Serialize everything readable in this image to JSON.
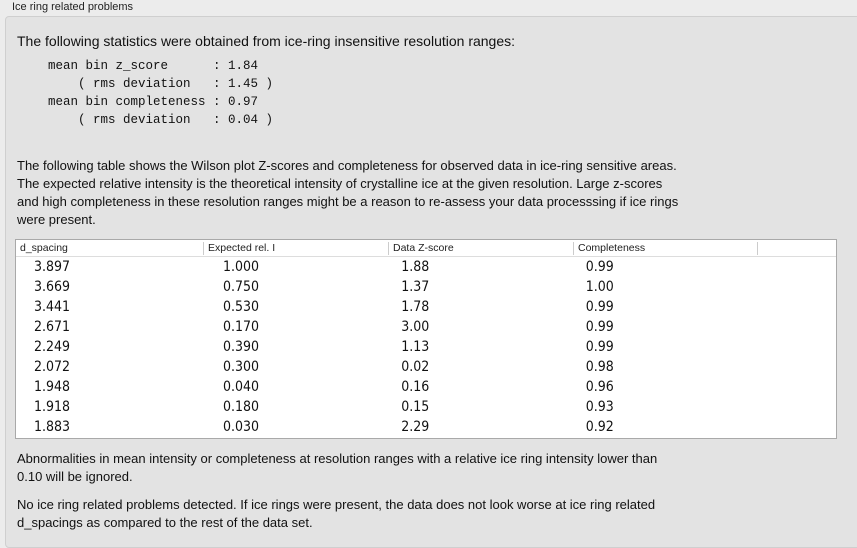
{
  "title": "Ice ring related problems",
  "intro": "The following statistics were obtained from ice-ring insensitive resolution ranges:",
  "stats": "mean bin z_score      : 1.84\n    ( rms deviation   : 1.45 )\nmean bin completeness : 0.97\n    ( rms deviation   : 0.04 )",
  "table_desc": [
    "The following table shows the Wilson plot Z-scores and completeness for observed data in ice-ring sensitive areas.",
    "The expected relative intensity is the theoretical intensity of crystalline ice at the given resolution. Large z-scores",
    "and high completeness in these resolution ranges might be a reason to re-assess your data processsing if ice rings",
    "were present."
  ],
  "table": {
    "headers": [
      "d_spacing",
      "Expected rel. I",
      "Data Z-score",
      "Completeness"
    ],
    "rows": [
      [
        "3.897",
        "1.000",
        "1.88",
        "0.99"
      ],
      [
        "3.669",
        "0.750",
        "1.37",
        "1.00"
      ],
      [
        "3.441",
        "0.530",
        "1.78",
        "0.99"
      ],
      [
        "2.671",
        "0.170",
        "3.00",
        "0.99"
      ],
      [
        "2.249",
        "0.390",
        "1.13",
        "0.99"
      ],
      [
        "2.072",
        "0.300",
        "0.02",
        "0.98"
      ],
      [
        "1.948",
        "0.040",
        "0.16",
        "0.96"
      ],
      [
        "1.918",
        "0.180",
        "0.15",
        "0.93"
      ],
      [
        "1.883",
        "0.030",
        "2.29",
        "0.92"
      ]
    ]
  },
  "note": [
    "Abnormalities in mean intensity or completeness at resolution ranges with a relative ice ring intensity lower than",
    "0.10 will be ignored."
  ],
  "conclusion": [
    "No ice ring related problems detected. If ice rings were present, the data does not look worse at ice ring related",
    "d_spacings as compared to the rest of the data set."
  ]
}
